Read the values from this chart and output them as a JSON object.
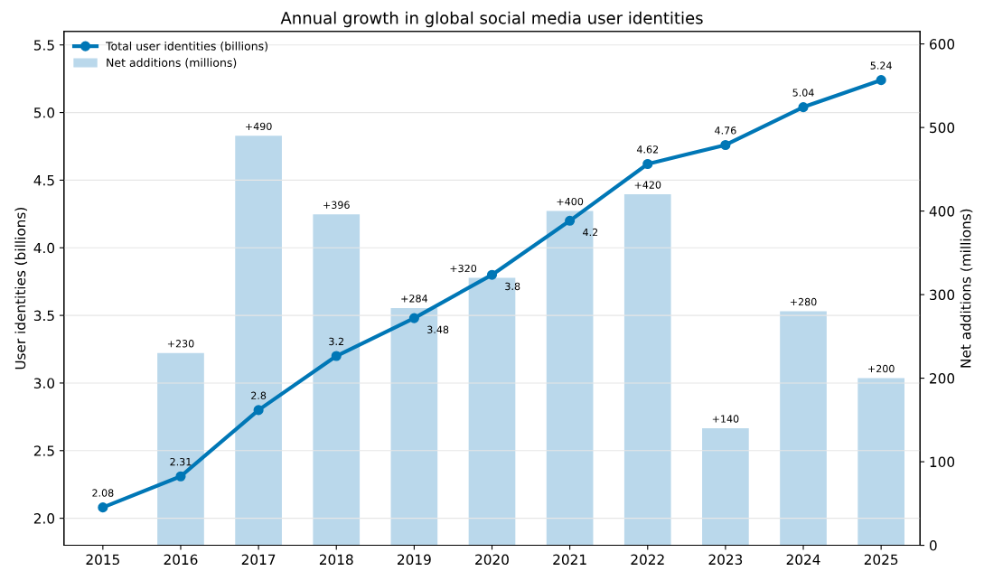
{
  "chart_data": {
    "type": "line",
    "title": "Annual growth in global social media user identities",
    "categories": [
      "2015",
      "2016",
      "2017",
      "2018",
      "2019",
      "2020",
      "2021",
      "2022",
      "2023",
      "2024",
      "2025"
    ],
    "series": [
      {
        "name": "Total user identities (billions)",
        "color": "#0077b6",
        "marker": "circle",
        "data_labels": true,
        "values": [
          2.08,
          2.31,
          2.8,
          3.2,
          3.48,
          3.8,
          4.2,
          4.62,
          4.76,
          5.04,
          5.24
        ]
      },
      {
        "name": "Net additions (millions)",
        "type": "bar",
        "axis": "y2",
        "color": "#bad8eb",
        "values": [
          null,
          230,
          490,
          396,
          284,
          320,
          400,
          420,
          140,
          280,
          200
        ],
        "value_labels": [
          null,
          "+230",
          "+490",
          "+396",
          "+284",
          "+320",
          "+400",
          "+420",
          "+140",
          "+280",
          "+200"
        ]
      }
    ],
    "ylabel": "User identities (billions)",
    "y2label": "Net additions (millions)",
    "ylim": [
      1.8,
      5.6
    ],
    "yticks": [
      {
        "value": 2,
        "label": "2.0"
      },
      2.5,
      {
        "value": 3,
        "label": "3.0"
      },
      3.5,
      {
        "value": 4,
        "label": "4.0"
      },
      4.5,
      {
        "value": 5,
        "label": "5.0"
      },
      5.5
    ],
    "y2lim": [
      0,
      615
    ],
    "y2ticks": [
      0,
      100,
      200,
      300,
      400,
      500,
      600
    ],
    "grid": "y",
    "legend": "top left"
  }
}
